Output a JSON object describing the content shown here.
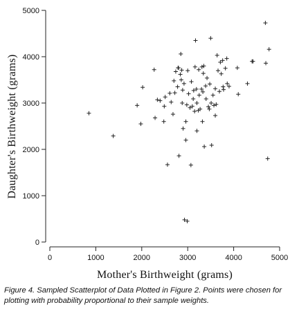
{
  "chart_data": {
    "type": "scatter",
    "xlabel": "Mother's Birthweight (grams)",
    "ylabel": "Daughter's Birthweight (grams)",
    "xlim": [
      0,
      5000
    ],
    "ylim": [
      0,
      5000
    ],
    "xticks": [
      0,
      1000,
      2000,
      3000,
      4000,
      5000
    ],
    "yticks": [
      0,
      1000,
      2000,
      3000,
      4000,
      5000
    ],
    "xtick_labels": [
      "0",
      "1000",
      "2000",
      "3000",
      "4000",
      "5000"
    ],
    "ytick_labels": [
      "0",
      "1000",
      "2000",
      "3000",
      "4000",
      "5000"
    ],
    "marker": "+",
    "grid": false,
    "points": [
      [
        850,
        2780
      ],
      [
        1380,
        2290
      ],
      [
        1900,
        2950
      ],
      [
        1980,
        2550
      ],
      [
        2020,
        3340
      ],
      [
        2270,
        3720
      ],
      [
        2290,
        2680
      ],
      [
        2340,
        3070
      ],
      [
        2400,
        3050
      ],
      [
        2480,
        2600
      ],
      [
        2490,
        2930
      ],
      [
        2510,
        3130
      ],
      [
        2560,
        1670
      ],
      [
        2610,
        3210
      ],
      [
        2640,
        3020
      ],
      [
        2680,
        2760
      ],
      [
        2700,
        3480
      ],
      [
        2720,
        3220
      ],
      [
        2740,
        3680
      ],
      [
        2780,
        3350
      ],
      [
        2790,
        3760
      ],
      [
        2800,
        3760
      ],
      [
        2810,
        1860
      ],
      [
        2840,
        3620
      ],
      [
        2850,
        4060
      ],
      [
        2860,
        3500
      ],
      [
        2870,
        3710
      ],
      [
        2880,
        3000
      ],
      [
        2890,
        3280
      ],
      [
        2900,
        2450
      ],
      [
        2920,
        3420
      ],
      [
        2930,
        480
      ],
      [
        2960,
        2200
      ],
      [
        2960,
        2600
      ],
      [
        2980,
        2960
      ],
      [
        2990,
        450
      ],
      [
        3000,
        3700
      ],
      [
        3020,
        3200
      ],
      [
        3050,
        2900
      ],
      [
        3070,
        1660
      ],
      [
        3080,
        3460
      ],
      [
        3100,
        2930
      ],
      [
        3120,
        3090
      ],
      [
        3130,
        3270
      ],
      [
        3150,
        2820
      ],
      [
        3160,
        3780
      ],
      [
        3170,
        4350
      ],
      [
        3190,
        3300
      ],
      [
        3200,
        2400
      ],
      [
        3200,
        3000
      ],
      [
        3230,
        2840
      ],
      [
        3240,
        3720
      ],
      [
        3250,
        3170
      ],
      [
        3270,
        2870
      ],
      [
        3300,
        3300
      ],
      [
        3310,
        3780
      ],
      [
        3320,
        2600
      ],
      [
        3330,
        3240
      ],
      [
        3340,
        3640
      ],
      [
        3350,
        3800
      ],
      [
        3360,
        2060
      ],
      [
        3390,
        3370
      ],
      [
        3400,
        3090
      ],
      [
        3420,
        3540
      ],
      [
        3450,
        2920
      ],
      [
        3470,
        2870
      ],
      [
        3480,
        3410
      ],
      [
        3500,
        4400
      ],
      [
        3510,
        3000
      ],
      [
        3520,
        2090
      ],
      [
        3550,
        3170
      ],
      [
        3570,
        2950
      ],
      [
        3600,
        3310
      ],
      [
        3600,
        2730
      ],
      [
        3620,
        2970
      ],
      [
        3640,
        4030
      ],
      [
        3660,
        3700
      ],
      [
        3690,
        3250
      ],
      [
        3710,
        3880
      ],
      [
        3730,
        3630
      ],
      [
        3760,
        3920
      ],
      [
        3770,
        3350
      ],
      [
        3780,
        3290
      ],
      [
        3820,
        3750
      ],
      [
        3850,
        3960
      ],
      [
        3860,
        3420
      ],
      [
        3900,
        3360
      ],
      [
        4080,
        3760
      ],
      [
        4100,
        3190
      ],
      [
        4300,
        3420
      ],
      [
        4400,
        3900
      ],
      [
        4420,
        3900
      ],
      [
        4690,
        4730
      ],
      [
        4700,
        3860
      ],
      [
        4740,
        1800
      ],
      [
        4770,
        4160
      ]
    ]
  },
  "caption": "Figure 4.  Sampled Scatterplot of Data Plotted in Figure 2. Points were chosen for plotting with probability proportional to their sample weights."
}
